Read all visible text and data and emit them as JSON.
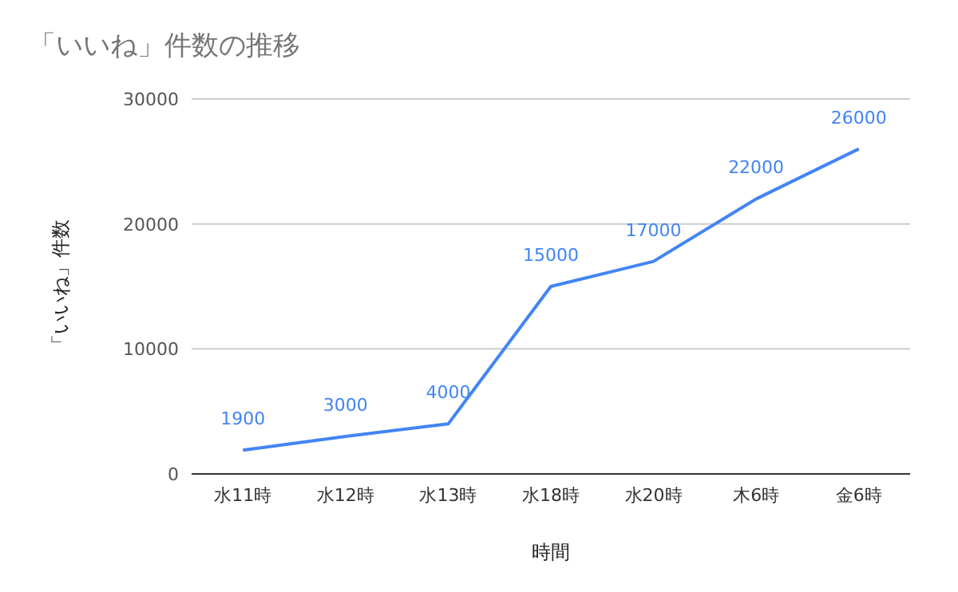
{
  "chart_data": {
    "type": "line",
    "title": "「いいね」件数の推移",
    "xlabel": "時間",
    "ylabel": "「いいね」件数",
    "categories": [
      "水11時",
      "水12時",
      "水13時",
      "水18時",
      "水20時",
      "木6時",
      "金6時"
    ],
    "series": [
      {
        "color": "#4285f4",
        "values": [
          1900,
          3000,
          4000,
          15000,
          17000,
          22000,
          26000
        ]
      }
    ],
    "ylim": [
      0,
      30000
    ],
    "yticks": [
      0,
      10000,
      20000,
      30000
    ],
    "grid": "y",
    "data_labels": true
  }
}
